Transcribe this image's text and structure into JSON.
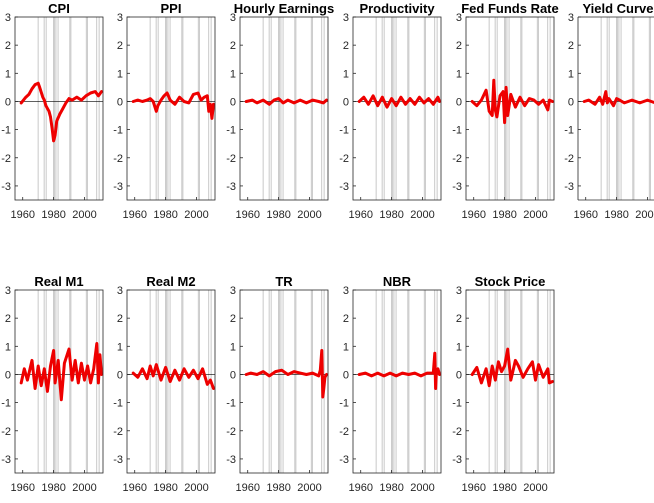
{
  "chart_data": {
    "type": "line",
    "series_color": "#ee0000",
    "ylim": [
      -3.5,
      3
    ],
    "yticks": [
      3,
      2,
      1,
      0,
      -1,
      -2,
      -3
    ],
    "yticks_text": [
      "3",
      "2",
      "1",
      "0",
      "-1",
      "-2",
      "-3"
    ],
    "xlim": [
      1955,
      2012
    ],
    "xticks": [
      1960,
      1980,
      2000
    ],
    "xticks_text": [
      "1960",
      "1980",
      "2000"
    ],
    "recession_lines": [
      1970,
      1973.9,
      1975.2,
      1980,
      1980.5,
      1981.5,
      1982.9,
      1990.5,
      1991.2,
      2001.2,
      2001.9,
      2007.9,
      2009.5
    ],
    "panels": [
      {
        "title": "CPI",
        "x": [
          1959,
          1962,
          1964,
          1966,
          1968,
          1970,
          1971,
          1973,
          1974,
          1975,
          1977,
          1978,
          1979,
          1980,
          1981,
          1982,
          1984,
          1986,
          1988,
          1990,
          1992,
          1995,
          1998,
          2001,
          2004,
          2007,
          2009,
          2011
        ],
        "y": [
          -0.05,
          0.15,
          0.25,
          0.45,
          0.6,
          0.65,
          0.5,
          0.15,
          0.05,
          -0.15,
          -0.35,
          -0.55,
          -0.95,
          -1.4,
          -1.2,
          -0.7,
          -0.45,
          -0.25,
          -0.05,
          0.1,
          0.05,
          0.15,
          0.05,
          0.2,
          0.3,
          0.35,
          0.2,
          0.35
        ]
      },
      {
        "title": "PPI",
        "x": [
          1959,
          1962,
          1965,
          1968,
          1970,
          1972,
          1974,
          1975,
          1977,
          1979,
          1981,
          1983,
          1986,
          1989,
          1992,
          1995,
          1998,
          2001,
          2003,
          2005,
          2007,
          2008,
          2009,
          2010,
          2011
        ],
        "y": [
          0.0,
          0.05,
          0.0,
          0.05,
          0.1,
          0.0,
          -0.35,
          -0.15,
          0.05,
          0.2,
          0.3,
          0.05,
          -0.1,
          0.15,
          0.0,
          -0.05,
          0.25,
          0.3,
          0.05,
          0.15,
          0.2,
          -0.35,
          -0.1,
          -0.6,
          -0.1
        ]
      },
      {
        "title": "Hourly Earnings",
        "x": [
          1959,
          1963,
          1966,
          1970,
          1974,
          1977,
          1980,
          1983,
          1986,
          1990,
          1994,
          1998,
          2002,
          2006,
          2009,
          2011
        ],
        "y": [
          0.0,
          0.05,
          -0.05,
          0.05,
          -0.1,
          0.05,
          0.1,
          -0.05,
          0.05,
          -0.05,
          0.05,
          -0.05,
          0.05,
          0.0,
          -0.05,
          0.05
        ]
      },
      {
        "title": "Productivity",
        "x": [
          1959,
          1962,
          1965,
          1968,
          1971,
          1974,
          1977,
          1980,
          1983,
          1986,
          1989,
          1992,
          1995,
          1998,
          2001,
          2004,
          2007,
          2010,
          2011
        ],
        "y": [
          0.0,
          0.15,
          -0.1,
          0.2,
          -0.15,
          0.15,
          -0.2,
          0.1,
          -0.15,
          0.15,
          -0.1,
          0.1,
          -0.1,
          0.15,
          -0.05,
          0.1,
          -0.1,
          0.15,
          0.0
        ]
      },
      {
        "title": "Fed Funds Rate",
        "x": [
          1959,
          1962,
          1965,
          1968,
          1970,
          1972,
          1973,
          1974,
          1975,
          1977,
          1979,
          1980,
          1981,
          1982,
          1984,
          1987,
          1990,
          1993,
          1996,
          1999,
          2002,
          2005,
          2008,
          2009,
          2011
        ],
        "y": [
          0.0,
          -0.15,
          0.05,
          0.4,
          -0.35,
          -0.5,
          0.75,
          -0.3,
          -0.55,
          0.2,
          0.35,
          -0.75,
          0.5,
          -0.5,
          0.25,
          -0.2,
          0.15,
          -0.15,
          0.1,
          0.05,
          -0.1,
          0.05,
          -0.3,
          0.05,
          0.0
        ]
      },
      {
        "title": "Yield Curve",
        "x": [
          1959,
          1962,
          1966,
          1969,
          1971,
          1973,
          1974,
          1975,
          1978,
          1980,
          1982,
          1985,
          1990,
          1995,
          2000,
          2005,
          2009,
          2011
        ],
        "y": [
          0.0,
          0.05,
          -0.1,
          0.15,
          -0.1,
          0.35,
          -0.05,
          0.1,
          -0.15,
          0.1,
          0.05,
          -0.05,
          0.05,
          -0.05,
          0.05,
          -0.05,
          0.0,
          0.05
        ]
      },
      {
        "title": "Real M1",
        "x": [
          1959,
          1961,
          1963,
          1966,
          1968,
          1970,
          1972,
          1974,
          1976,
          1978,
          1980,
          1981,
          1983,
          1985,
          1987,
          1990,
          1992,
          1994,
          1996,
          1998,
          2000,
          2002,
          2004,
          2006,
          2008,
          2009,
          2010,
          2011
        ],
        "y": [
          -0.3,
          0.2,
          -0.2,
          0.5,
          -0.5,
          0.3,
          -0.4,
          0.2,
          -0.6,
          0.3,
          0.85,
          -0.3,
          0.5,
          -0.9,
          0.4,
          0.9,
          -0.2,
          0.5,
          -0.3,
          0.4,
          -0.2,
          0.3,
          -0.3,
          0.2,
          1.1,
          -0.3,
          0.7,
          0.0
        ]
      },
      {
        "title": "Real M2",
        "x": [
          1959,
          1962,
          1965,
          1968,
          1970,
          1972,
          1974,
          1977,
          1980,
          1983,
          1986,
          1989,
          1992,
          1995,
          1998,
          2001,
          2004,
          2007,
          2009,
          2011
        ],
        "y": [
          0.05,
          -0.1,
          0.2,
          -0.15,
          0.3,
          -0.05,
          0.35,
          -0.2,
          0.25,
          -0.25,
          0.15,
          -0.2,
          0.2,
          -0.1,
          0.15,
          -0.15,
          0.2,
          -0.35,
          -0.2,
          -0.5
        ]
      },
      {
        "title": "TR",
        "x": [
          1959,
          1962,
          1966,
          1970,
          1974,
          1978,
          1982,
          1986,
          1990,
          1994,
          1998,
          2002,
          2006,
          2007,
          2008,
          2008.6,
          2009.3,
          2010,
          2011
        ],
        "y": [
          0.0,
          0.05,
          0.0,
          0.1,
          -0.05,
          0.1,
          0.15,
          0.0,
          0.1,
          0.05,
          0.0,
          0.05,
          -0.05,
          0.15,
          0.85,
          -0.8,
          -0.5,
          -0.1,
          0.0
        ]
      },
      {
        "title": "NBR",
        "x": [
          1959,
          1963,
          1967,
          1971,
          1975,
          1979,
          1983,
          1987,
          1991,
          1995,
          1999,
          2003,
          2007,
          2008,
          2008.5,
          2009,
          2010,
          2011
        ],
        "y": [
          0.0,
          0.05,
          -0.05,
          0.05,
          -0.05,
          0.05,
          -0.05,
          0.05,
          0.0,
          0.05,
          -0.05,
          0.05,
          0.05,
          0.75,
          -0.5,
          0.1,
          0.2,
          0.0
        ]
      },
      {
        "title": "Stock Price",
        "x": [
          1959,
          1962,
          1965,
          1968,
          1970,
          1972,
          1974,
          1976,
          1978,
          1980,
          1982,
          1984,
          1987,
          1989,
          1992,
          1995,
          1998,
          2000,
          2002,
          2005,
          2008,
          2009,
          2011
        ],
        "y": [
          0.0,
          0.25,
          -0.3,
          0.2,
          -0.4,
          0.3,
          -0.2,
          0.45,
          0.1,
          0.3,
          0.9,
          -0.2,
          0.5,
          0.3,
          -0.1,
          0.2,
          0.45,
          -0.2,
          0.35,
          -0.1,
          0.2,
          -0.3,
          -0.25
        ]
      }
    ]
  }
}
